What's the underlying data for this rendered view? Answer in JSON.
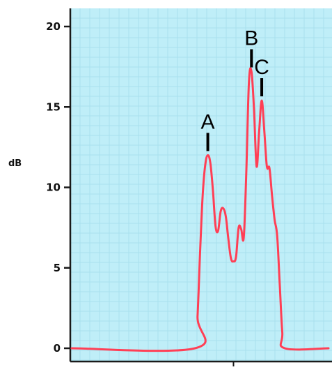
{
  "chart_data": {
    "type": "line",
    "title": "",
    "xlabel": "",
    "ylabel": "dB",
    "ylim": [
      0,
      20
    ],
    "yticks": [
      "0",
      "5",
      "10",
      "15",
      "20"
    ],
    "series": [
      {
        "color": "#ff3f55",
        "points": [
          [
            0,
            0
          ],
          [
            48,
            0
          ],
          [
            49,
            2
          ],
          [
            50,
            6
          ],
          [
            51,
            9.5
          ],
          [
            52,
            11.4
          ],
          [
            53,
            12
          ],
          [
            54,
            11.5
          ],
          [
            55,
            9.8
          ],
          [
            56,
            7.6
          ],
          [
            57,
            7.3
          ],
          [
            58,
            8.5
          ],
          [
            59,
            8.7
          ],
          [
            60,
            8.2
          ],
          [
            61,
            6.8
          ],
          [
            62,
            5.6
          ],
          [
            63,
            5.4
          ],
          [
            64,
            5.7
          ],
          [
            65,
            7.5
          ],
          [
            66,
            7.4
          ],
          [
            67,
            6.9
          ],
          [
            68,
            11
          ],
          [
            69,
            16.5
          ],
          [
            70,
            17.2
          ],
          [
            71,
            14.8
          ],
          [
            72,
            11.3
          ],
          [
            73,
            13.5
          ],
          [
            74,
            15.4
          ],
          [
            75,
            13.5
          ],
          [
            76,
            11.3
          ],
          [
            77,
            11.2
          ],
          [
            78,
            9.5
          ],
          [
            79,
            8
          ],
          [
            80,
            7
          ],
          [
            81,
            4
          ],
          [
            82,
            1
          ],
          [
            83,
            0
          ],
          [
            100,
            0
          ]
        ]
      }
    ],
    "annotations": [
      {
        "label": "A",
        "x": 53,
        "y": 12
      },
      {
        "label": "B",
        "x": 70,
        "y": 17.2
      },
      {
        "label": "C",
        "x": 74,
        "y": 15.4
      }
    ],
    "colors": {
      "background": "#bfeef8",
      "grid": "#a9e0ee",
      "axis": "#1a1a1a",
      "line": "#ff3f55"
    },
    "grid": true
  }
}
